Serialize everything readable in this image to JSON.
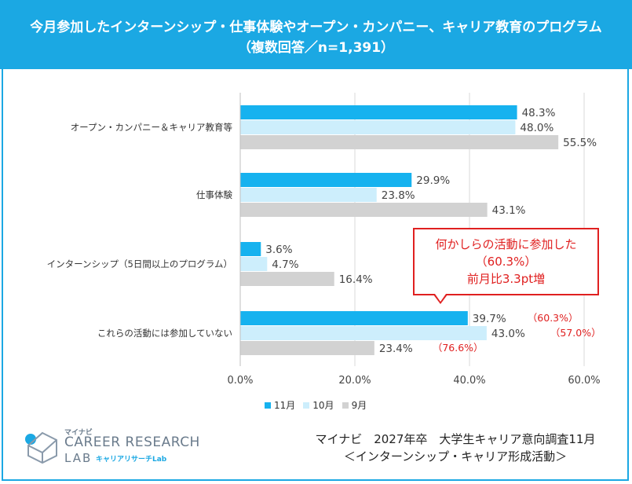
{
  "header": {
    "title_line1": "今月参加したインターンシップ・仕事体験やオープン・カンパニー、キャリア教育のプログラム",
    "title_line2": "（複数回答／n=1,391）"
  },
  "chart_data": {
    "type": "bar",
    "orientation": "horizontal",
    "categories": [
      "オープン・カンパニー＆キャリア教育等",
      "仕事体験",
      "インターンシップ（5日間以上のプログラム）",
      "これらの活動には参加していない"
    ],
    "series": [
      {
        "name": "11月",
        "color": "#16b2ef",
        "values": [
          48.3,
          29.9,
          3.6,
          39.7
        ],
        "labels": [
          "48.3%",
          "29.9%",
          "3.6%",
          "39.7%"
        ]
      },
      {
        "name": "10月",
        "color": "#cdeefc",
        "values": [
          48.0,
          23.8,
          4.7,
          43.0
        ],
        "labels": [
          "48.0%",
          "23.8%",
          "4.7%",
          "43.0%"
        ]
      },
      {
        "name": "9月",
        "color": "#d2d2d2",
        "values": [
          55.5,
          43.1,
          16.4,
          23.4
        ],
        "labels": [
          "55.5%",
          "43.1%",
          "16.4%",
          "23.4%"
        ]
      }
    ],
    "annotations": [
      {
        "category": 3,
        "series": 0,
        "text": "（60.3%）"
      },
      {
        "category": 3,
        "series": 1,
        "text": "（57.0%）"
      },
      {
        "category": 3,
        "series": 2,
        "text": "（76.6%）"
      }
    ],
    "xlim": [
      0,
      60
    ],
    "xticks": [
      "0.0%",
      "20.0%",
      "40.0%",
      "60.0%"
    ],
    "xtick_values": [
      0,
      20,
      40,
      60
    ],
    "grid": true,
    "legend": "bottom-center"
  },
  "callout": {
    "line1": "何かしらの活動に参加した",
    "line2": "（60.3%）",
    "line3": "前月比3.3pt増"
  },
  "logo": {
    "brand_small": "マイナビ",
    "brand_main": "CAREER RESEARCH",
    "brand_lab": "LAB",
    "brand_sub": "キャリアリサーチLab"
  },
  "source": {
    "line1": "マイナビ　2027年卒　大学生キャリア意向調査11月",
    "line2": "＜インターンシップ・キャリア形成活動＞"
  },
  "colors": {
    "accent": "#1ba8e3",
    "highlight": "#e02020"
  }
}
